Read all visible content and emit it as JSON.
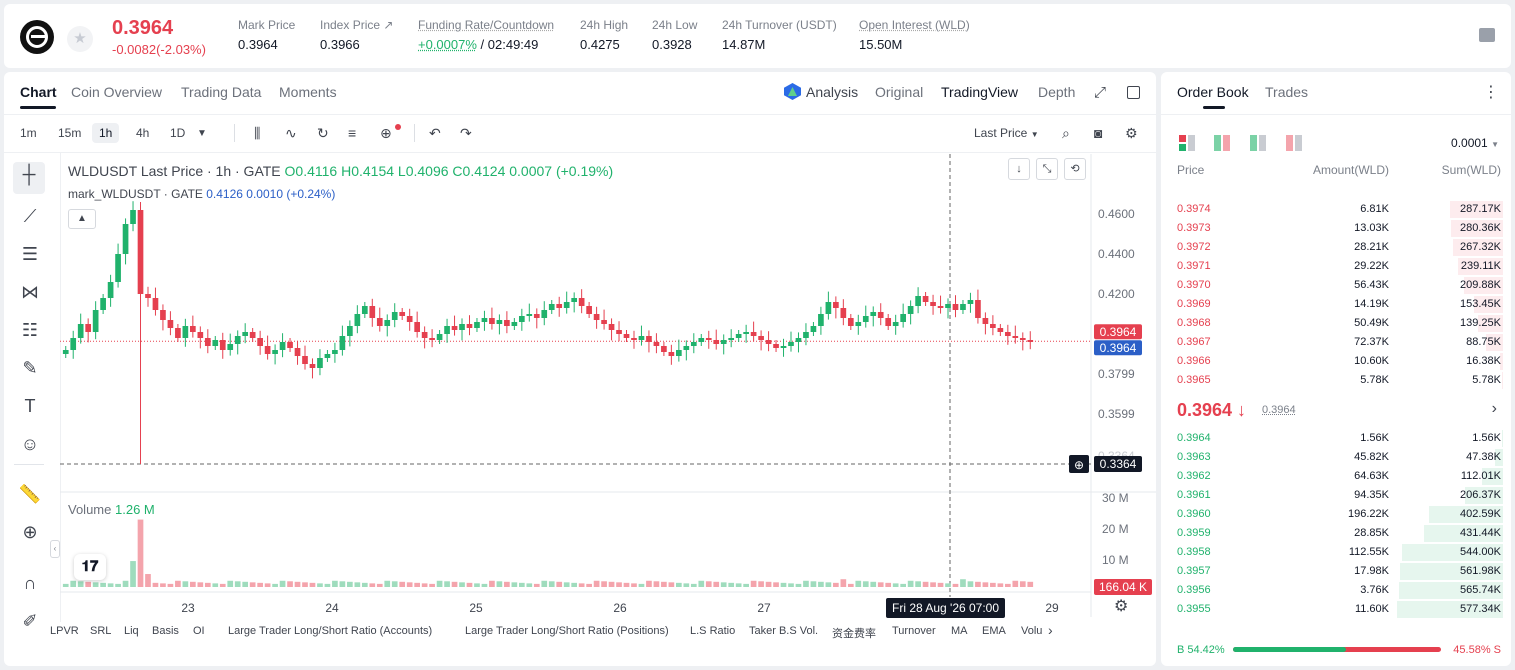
{
  "header": {
    "last_price": "0.3964",
    "change": "-0.0082(-2.03%)",
    "stats": [
      {
        "label": "Mark Price",
        "value": "0.3964"
      },
      {
        "label": "Index Price ↗",
        "value": "0.3966"
      },
      {
        "label": "Funding Rate/Countdown",
        "value_green": "+0.0007%",
        "value": "/ 02:49:49"
      },
      {
        "label": "24h High",
        "value": "0.4275"
      },
      {
        "label": "24h Low",
        "value": "0.3928"
      },
      {
        "label": "24h Turnover (USDT)",
        "value": "14.87M"
      },
      {
        "label": "Open Interest (WLD)",
        "value": "15.50M"
      }
    ]
  },
  "chart_tabs": [
    "Chart",
    "Coin Overview",
    "Trading Data",
    "Moments"
  ],
  "view_tabs": {
    "analysis": "Analysis",
    "original": "Original",
    "tradingview": "TradingView",
    "depth": "Depth"
  },
  "timeframes": [
    "1m",
    "15m",
    "1h",
    "4h",
    "1D"
  ],
  "price_type": "Last Price",
  "legend": {
    "symbol": "WLDUSDT Last Price · 1h · GATE",
    "o": "O0.4116",
    "h": "H0.4154",
    "l": "L0.4096",
    "c": "C0.4124",
    "chg": "0.0007 (+0.19%)",
    "mark": "mark_WLDUSDT · GATE",
    "mark_val": "0.4126  0.0010 (+0.24%)"
  },
  "chart_data": {
    "type": "candlestick",
    "y_ticks": [
      "0.4600",
      "0.4400",
      "0.4200",
      "0.3799",
      "0.3599"
    ],
    "ylim": [
      0.335,
      0.47
    ],
    "x_ticks": [
      "23",
      "24",
      "25",
      "26",
      "27",
      "29"
    ],
    "last_price_tag": "0.3964",
    "mark_price_tag": "0.3964",
    "crosshair_price": "0.3364",
    "crosshair_time": "Fri 28 Aug '26   07:00",
    "close_series": [
      0.392,
      0.398,
      0.405,
      0.401,
      0.412,
      0.418,
      0.426,
      0.44,
      0.455,
      0.462,
      0.42,
      0.418,
      0.412,
      0.407,
      0.403,
      0.398,
      0.404,
      0.401,
      0.398,
      0.394,
      0.397,
      0.392,
      0.395,
      0.399,
      0.401,
      0.398,
      0.394,
      0.39,
      0.392,
      0.396,
      0.393,
      0.389,
      0.385,
      0.383,
      0.388,
      0.39,
      0.392,
      0.399,
      0.404,
      0.41,
      0.414,
      0.408,
      0.404,
      0.407,
      0.411,
      0.409,
      0.406,
      0.401,
      0.398,
      0.397,
      0.4,
      0.404,
      0.402,
      0.405,
      0.403,
      0.406,
      0.408,
      0.405,
      0.407,
      0.404,
      0.406,
      0.409,
      0.41,
      0.408,
      0.412,
      0.415,
      0.413,
      0.416,
      0.418,
      0.414,
      0.41,
      0.407,
      0.405,
      0.402,
      0.4,
      0.398,
      0.397,
      0.399,
      0.396,
      0.394,
      0.391,
      0.389,
      0.392,
      0.394,
      0.396,
      0.398,
      0.397,
      0.395,
      0.397,
      0.398,
      0.4,
      0.401,
      0.399,
      0.397,
      0.395,
      0.393,
      0.394,
      0.396,
      0.398,
      0.401,
      0.404,
      0.41,
      0.416,
      0.413,
      0.408,
      0.404,
      0.406,
      0.409,
      0.411,
      0.408,
      0.404,
      0.406,
      0.41,
      0.414,
      0.419,
      0.416,
      0.414,
      0.413,
      0.415,
      0.412,
      0.415,
      0.417,
      0.408,
      0.405,
      0.403,
      0.401,
      0.399,
      0.398,
      0.397,
      0.396
    ],
    "volume_label": "Volume",
    "volume_value": "1.26 M",
    "volume_ticks": [
      "30 M",
      "20 M",
      "10 M"
    ],
    "volume_tag": "166.04 K",
    "spike_volume": 0.26
  },
  "indicators": [
    "LPVR",
    "SRL",
    "Liq",
    "Basis",
    "OI",
    "Large Trader Long/Short Ratio (Accounts)",
    "Large Trader Long/Short Ratio (Positions)",
    "L.S Ratio",
    "Taker B.S Vol.",
    "资金费率",
    "Turnover",
    "MA",
    "EMA",
    "Volu"
  ],
  "orderbook": {
    "tabs": [
      "Order Book",
      "Trades"
    ],
    "precision": "0.0001",
    "headers": {
      "price": "Price",
      "amount": "Amount(WLD)",
      "sum": "Sum(WLD)"
    },
    "asks": [
      {
        "p": "0.3974",
        "a": "6.81K",
        "s": "287.17K",
        "f": 0.5
      },
      {
        "p": "0.3973",
        "a": "13.03K",
        "s": "280.36K",
        "f": 0.49
      },
      {
        "p": "0.3972",
        "a": "28.21K",
        "s": "267.32K",
        "f": 0.47
      },
      {
        "p": "0.3971",
        "a": "29.22K",
        "s": "239.11K",
        "f": 0.42
      },
      {
        "p": "0.3970",
        "a": "56.43K",
        "s": "209.88K",
        "f": 0.37
      },
      {
        "p": "0.3969",
        "a": "14.19K",
        "s": "153.45K",
        "f": 0.27
      },
      {
        "p": "0.3968",
        "a": "50.49K",
        "s": "139.25K",
        "f": 0.24
      },
      {
        "p": "0.3967",
        "a": "72.37K",
        "s": "88.75K",
        "f": 0.16
      },
      {
        "p": "0.3966",
        "a": "10.60K",
        "s": "16.38K",
        "f": 0.03
      },
      {
        "p": "0.3965",
        "a": "5.78K",
        "s": "5.78K",
        "f": 0.01
      }
    ],
    "mid_price": "0.3964 ↓",
    "mid_mark": "0.3964",
    "bids": [
      {
        "p": "0.3964",
        "a": "1.56K",
        "s": "1.56K",
        "f": 0.01
      },
      {
        "p": "0.3963",
        "a": "45.82K",
        "s": "47.38K",
        "f": 0.08
      },
      {
        "p": "0.3962",
        "a": "64.63K",
        "s": "112.01K",
        "f": 0.2
      },
      {
        "p": "0.3961",
        "a": "94.35K",
        "s": "206.37K",
        "f": 0.36
      },
      {
        "p": "0.3960",
        "a": "196.22K",
        "s": "402.59K",
        "f": 0.7
      },
      {
        "p": "0.3959",
        "a": "28.85K",
        "s": "431.44K",
        "f": 0.75
      },
      {
        "p": "0.3958",
        "a": "112.55K",
        "s": "544.00K",
        "f": 0.95
      },
      {
        "p": "0.3957",
        "a": "17.98K",
        "s": "561.98K",
        "f": 0.97
      },
      {
        "p": "0.3956",
        "a": "3.76K",
        "s": "565.74K",
        "f": 0.98
      },
      {
        "p": "0.3955",
        "a": "11.60K",
        "s": "577.34K",
        "f": 1.0
      }
    ],
    "buy_ratio": "B 54.42%",
    "sell_ratio": "45.58% S",
    "buy_fraction": 0.5442
  },
  "colors": {
    "up": "#20b26c",
    "down": "#e5404f",
    "ask_bg": "#fdecee",
    "bid_bg": "#e6f6ee"
  }
}
